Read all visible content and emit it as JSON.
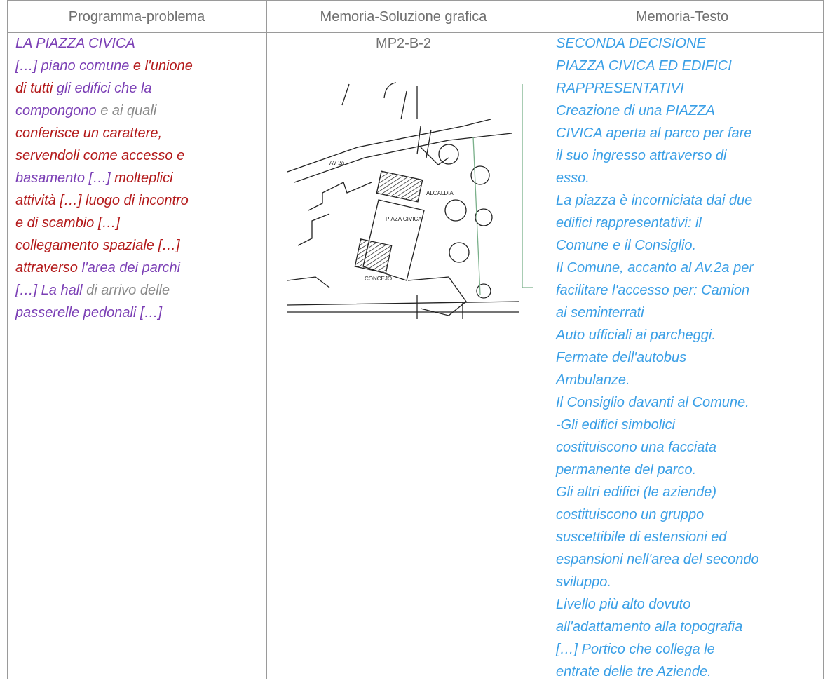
{
  "table": {
    "headers": [
      "Programma-problema",
      "Memoria-Soluzione grafica",
      "Memoria-Testo"
    ],
    "left": [
      [
        {
          "text": "LA PIAZZA CIVICA",
          "color": "#7b3fb5"
        }
      ],
      [
        {
          "text": "[…] piano comune",
          "color": "#7b3fb5"
        },
        {
          "text": " e l'unione",
          "color": "#b3191a"
        }
      ],
      [
        {
          "text": "di tutti",
          "color": "#b3191a"
        },
        {
          "text": " gli edifici che la",
          "color": "#7b3fb5"
        }
      ],
      [
        {
          "text": "compongono",
          "color": "#7b3fb5"
        },
        {
          "text": " e ai quali",
          "color": "#8a8a8a"
        }
      ],
      [
        {
          "text": "conferisce un carattere,",
          "color": "#b3191a"
        }
      ],
      [
        {
          "text": "servendoli come accesso e",
          "color": "#b3191a"
        }
      ],
      [
        {
          "text": "basamento […]",
          "color": "#7b3fb5"
        },
        {
          "text": " molteplici",
          "color": "#b3191a"
        }
      ],
      [
        {
          "text": "attività […] luogo di incontro",
          "color": "#b3191a"
        }
      ],
      [
        {
          "text": "e di scambio […]",
          "color": "#b3191a"
        }
      ],
      [
        {
          "text": "collegamento spaziale […]",
          "color": "#b3191a"
        }
      ],
      [
        {
          "text": "attraverso",
          "color": "#b3191a"
        },
        {
          "text": " l'area dei parchi",
          "color": "#7b3fb5"
        }
      ],
      [
        {
          "text": "[…] La hall",
          "color": "#7b3fb5"
        },
        {
          "text": " di arrivo delle",
          "color": "#8a8a8a"
        }
      ],
      [
        {
          "text": "passerelle pedonali […]",
          "color": "#7b3fb5"
        }
      ]
    ],
    "middle": {
      "label": "MP2-B-2",
      "sketch_labels": [
        "AV 2a",
        "ALCALDIA",
        "PIAZA CIVICA",
        "CONCEJO"
      ]
    },
    "right": [
      "SECONDA DECISIONE",
      "PIAZZA CIVICA ED EDIFICI",
      "RAPPRESENTATIVI",
      "Creazione di una PIAZZA",
      "CIVICA aperta al parco per fare",
      "il suo ingresso attraverso di",
      "esso.",
      "La piazza è incorniciata dai due",
      "edifici rappresentativi: il",
      "Comune e il Consiglio.",
      "Il Comune, accanto al Av.2a per",
      "facilitare l'accesso per: Camion",
      "ai seminterrati",
      "Auto ufficiali ai parcheggi.",
      "Fermate dell'autobus",
      "Ambulanze.",
      "Il Consiglio davanti al Comune.",
      "-Gli edifici simbolici",
      "costituiscono una facciata",
      "permanente del parco.",
      "Gli altri edifici (le aziende)",
      "costituiscono un gruppo",
      "suscettibile di estensioni ed",
      "espansioni nell'area del secondo",
      "sviluppo.",
      "Livello più alto dovuto",
      "all'adattamento alla topografia",
      "[…] Portico che collega le",
      "entrate delle tre Aziende."
    ]
  }
}
